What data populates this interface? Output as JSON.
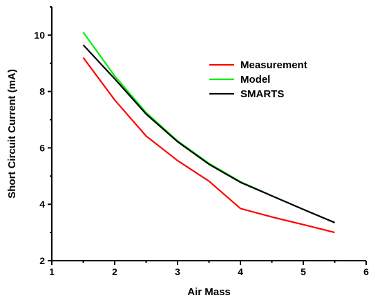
{
  "chart_data": {
    "type": "line",
    "title": "",
    "xlabel": "Air Mass",
    "ylabel": "Short Circuit Current (mA)",
    "xlim": [
      1,
      6
    ],
    "ylim": [
      2,
      11
    ],
    "xticks": [
      "1",
      "2",
      "3",
      "4",
      "5",
      "6"
    ],
    "yticks": [
      "2",
      "4",
      "6",
      "8",
      "10"
    ],
    "grid": false,
    "legend_position": "top-right",
    "x": [
      1.5,
      2.0,
      2.5,
      3.0,
      3.5,
      4.0,
      4.5,
      5.0,
      5.5
    ],
    "series": [
      {
        "name": "Measurement",
        "color": "#ff0000",
        "values": [
          9.2,
          7.7,
          6.42,
          5.55,
          4.82,
          3.85,
          3.55,
          3.28,
          3.0
        ]
      },
      {
        "name": "Model",
        "color": "#00ee00",
        "values": [
          10.1,
          8.55,
          7.25,
          6.25,
          5.45,
          4.8,
          4.3,
          3.82,
          3.35
        ]
      },
      {
        "name": "SMARTS",
        "color": "#000000",
        "values": [
          9.65,
          8.45,
          7.2,
          6.22,
          5.42,
          4.78,
          4.3,
          3.82,
          3.35
        ]
      }
    ]
  }
}
